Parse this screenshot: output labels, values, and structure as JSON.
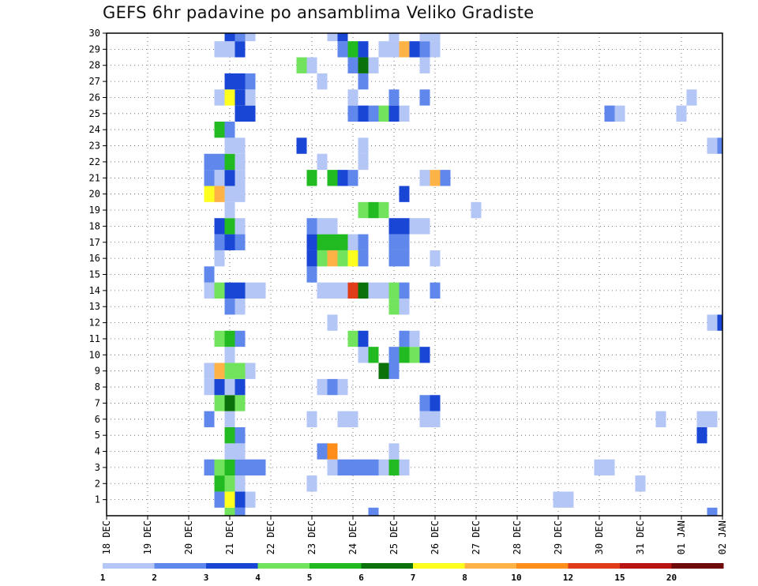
{
  "chart_data": {
    "type": "heatmap",
    "title": "GEFS 6hr padavine po ansamblima Veliko Gradiste",
    "xlabel": "",
    "ylabel": "",
    "x_tick_labels": [
      "18 DEC",
      "19 DEC",
      "20 DEC",
      "21 DEC",
      "22 DEC",
      "23 DEC",
      "24 DEC",
      "25 DEC",
      "26 DEC",
      "27 DEC",
      "28 DEC",
      "29 DEC",
      "30 DEC",
      "31 DEC",
      "01 JAN",
      "02 JAN"
    ],
    "y_tick_labels": [
      "1",
      "2",
      "3",
      "4",
      "5",
      "6",
      "7",
      "8",
      "9",
      "10",
      "11",
      "12",
      "13",
      "14",
      "15",
      "16",
      "17",
      "18",
      "19",
      "20",
      "21",
      "22",
      "23",
      "24",
      "25",
      "26",
      "27",
      "28",
      "29",
      "30"
    ],
    "x_unit": "6-hour step (0 = 18 DEC 00Z)",
    "ylim": [
      0,
      30
    ],
    "xlim": [
      0,
      60
    ],
    "grid": true,
    "legend_position": "bottom",
    "legend_labels": [
      "1",
      "2",
      "3",
      "4",
      "5",
      "6",
      "7",
      "8",
      "10",
      "12",
      "15",
      "20"
    ],
    "legend_colors": [
      "#b3c6f5",
      "#5f87ec",
      "#1a46d6",
      "#72e35c",
      "#21bb21",
      "#0b720b",
      "#ffff1f",
      "#ffb347",
      "#ff8d1a",
      "#e03c19",
      "#b81414",
      "#6e0a0a"
    ],
    "color_levels": [
      "#b3c6f5",
      "#5f87ec",
      "#1a46d6",
      "#72e35c",
      "#21bb21",
      "#0b720b",
      "#ffff1f",
      "#ffb347",
      "#ff8d1a",
      "#e03c19",
      "#b81414",
      "#6e0a0a"
    ],
    "cells": [
      [
        12,
        0,
        4
      ],
      [
        13,
        0,
        2
      ],
      [
        26,
        0,
        2
      ],
      [
        59,
        0,
        2
      ],
      [
        11,
        1,
        2
      ],
      [
        12,
        1,
        7
      ],
      [
        13,
        1,
        3
      ],
      [
        14,
        1,
        1
      ],
      [
        44,
        1,
        1
      ],
      [
        45,
        1,
        1
      ],
      [
        11,
        2,
        5
      ],
      [
        12,
        2,
        4
      ],
      [
        13,
        2,
        1
      ],
      [
        20,
        2,
        1
      ],
      [
        52,
        2,
        1
      ],
      [
        10,
        3,
        2
      ],
      [
        11,
        3,
        4
      ],
      [
        12,
        3,
        5
      ],
      [
        13,
        3,
        2
      ],
      [
        14,
        3,
        2
      ],
      [
        15,
        3,
        2
      ],
      [
        22,
        3,
        1
      ],
      [
        23,
        3,
        2
      ],
      [
        24,
        3,
        2
      ],
      [
        25,
        3,
        2
      ],
      [
        26,
        3,
        2
      ],
      [
        27,
        3,
        1
      ],
      [
        28,
        3,
        5
      ],
      [
        29,
        3,
        1
      ],
      [
        48,
        3,
        1
      ],
      [
        49,
        3,
        1
      ],
      [
        12,
        4,
        1
      ],
      [
        13,
        4,
        1
      ],
      [
        21,
        4,
        2
      ],
      [
        22,
        4,
        9
      ],
      [
        28,
        4,
        1
      ],
      [
        12,
        5,
        5
      ],
      [
        13,
        5,
        2
      ],
      [
        58,
        5,
        3
      ],
      [
        10,
        6,
        2
      ],
      [
        12,
        6,
        1
      ],
      [
        20,
        6,
        1
      ],
      [
        23,
        6,
        1
      ],
      [
        24,
        6,
        1
      ],
      [
        31,
        6,
        1
      ],
      [
        32,
        6,
        1
      ],
      [
        54,
        6,
        1
      ],
      [
        58,
        6,
        1
      ],
      [
        59,
        6,
        1
      ],
      [
        11,
        7,
        4
      ],
      [
        12,
        7,
        6
      ],
      [
        13,
        7,
        4
      ],
      [
        31,
        7,
        2
      ],
      [
        32,
        7,
        3
      ],
      [
        10,
        8,
        1
      ],
      [
        11,
        8,
        3
      ],
      [
        12,
        8,
        1
      ],
      [
        13,
        8,
        3
      ],
      [
        21,
        8,
        1
      ],
      [
        22,
        8,
        2
      ],
      [
        23,
        8,
        1
      ],
      [
        10,
        9,
        1
      ],
      [
        11,
        9,
        8
      ],
      [
        12,
        9,
        4
      ],
      [
        13,
        9,
        4
      ],
      [
        14,
        9,
        1
      ],
      [
        27,
        9,
        6
      ],
      [
        28,
        9,
        2
      ],
      [
        12,
        10,
        1
      ],
      [
        25,
        10,
        1
      ],
      [
        26,
        10,
        5
      ],
      [
        28,
        10,
        2
      ],
      [
        29,
        10,
        5
      ],
      [
        30,
        10,
        4
      ],
      [
        31,
        10,
        3
      ],
      [
        11,
        11,
        4
      ],
      [
        12,
        11,
        5
      ],
      [
        13,
        11,
        2
      ],
      [
        24,
        11,
        4
      ],
      [
        25,
        11,
        3
      ],
      [
        29,
        11,
        2
      ],
      [
        30,
        11,
        1
      ],
      [
        22,
        12,
        1
      ],
      [
        59,
        12,
        1
      ],
      [
        60,
        12,
        3
      ],
      [
        12,
        13,
        2
      ],
      [
        13,
        13,
        1
      ],
      [
        28,
        13,
        4
      ],
      [
        29,
        13,
        1
      ],
      [
        10,
        14,
        1
      ],
      [
        11,
        14,
        4
      ],
      [
        12,
        14,
        3
      ],
      [
        13,
        14,
        3
      ],
      [
        14,
        14,
        1
      ],
      [
        15,
        14,
        1
      ],
      [
        21,
        14,
        1
      ],
      [
        22,
        14,
        1
      ],
      [
        23,
        14,
        1
      ],
      [
        24,
        14,
        10
      ],
      [
        25,
        14,
        6
      ],
      [
        26,
        14,
        1
      ],
      [
        27,
        14,
        1
      ],
      [
        28,
        14,
        4
      ],
      [
        29,
        14,
        2
      ],
      [
        32,
        14,
        2
      ],
      [
        10,
        15,
        2
      ],
      [
        20,
        15,
        2
      ],
      [
        11,
        16,
        1
      ],
      [
        20,
        16,
        3
      ],
      [
        21,
        16,
        4
      ],
      [
        22,
        16,
        8
      ],
      [
        23,
        16,
        4
      ],
      [
        24,
        16,
        7
      ],
      [
        25,
        16,
        2
      ],
      [
        28,
        16,
        2
      ],
      [
        29,
        16,
        2
      ],
      [
        32,
        16,
        1
      ],
      [
        11,
        17,
        2
      ],
      [
        12,
        17,
        3
      ],
      [
        13,
        17,
        2
      ],
      [
        20,
        17,
        3
      ],
      [
        21,
        17,
        5
      ],
      [
        22,
        17,
        5
      ],
      [
        23,
        17,
        5
      ],
      [
        24,
        17,
        1
      ],
      [
        25,
        17,
        2
      ],
      [
        28,
        17,
        2
      ],
      [
        29,
        17,
        2
      ],
      [
        11,
        18,
        3
      ],
      [
        12,
        18,
        5
      ],
      [
        13,
        18,
        1
      ],
      [
        20,
        18,
        2
      ],
      [
        21,
        18,
        1
      ],
      [
        22,
        18,
        1
      ],
      [
        28,
        18,
        3
      ],
      [
        29,
        18,
        3
      ],
      [
        30,
        18,
        1
      ],
      [
        31,
        18,
        1
      ],
      [
        12,
        19,
        1
      ],
      [
        25,
        19,
        4
      ],
      [
        26,
        19,
        5
      ],
      [
        27,
        19,
        4
      ],
      [
        36,
        19,
        1
      ],
      [
        10,
        20,
        7
      ],
      [
        11,
        20,
        8
      ],
      [
        12,
        20,
        1
      ],
      [
        13,
        20,
        1
      ],
      [
        29,
        20,
        3
      ],
      [
        10,
        21,
        2
      ],
      [
        11,
        21,
        1
      ],
      [
        12,
        21,
        3
      ],
      [
        13,
        21,
        1
      ],
      [
        20,
        21,
        5
      ],
      [
        22,
        21,
        5
      ],
      [
        23,
        21,
        3
      ],
      [
        24,
        21,
        2
      ],
      [
        31,
        21,
        1
      ],
      [
        32,
        21,
        8
      ],
      [
        33,
        21,
        2
      ],
      [
        10,
        22,
        2
      ],
      [
        11,
        22,
        2
      ],
      [
        12,
        22,
        5
      ],
      [
        13,
        22,
        1
      ],
      [
        21,
        22,
        1
      ],
      [
        25,
        22,
        1
      ],
      [
        12,
        23,
        1
      ],
      [
        13,
        23,
        1
      ],
      [
        19,
        23,
        3
      ],
      [
        25,
        23,
        1
      ],
      [
        59,
        23,
        1
      ],
      [
        60,
        23,
        2
      ],
      [
        11,
        24,
        5
      ],
      [
        12,
        24,
        2
      ],
      [
        13,
        25,
        3
      ],
      [
        14,
        25,
        3
      ],
      [
        24,
        25,
        2
      ],
      [
        25,
        25,
        3
      ],
      [
        26,
        25,
        2
      ],
      [
        27,
        25,
        4
      ],
      [
        28,
        25,
        3
      ],
      [
        29,
        25,
        1
      ],
      [
        49,
        25,
        2
      ],
      [
        50,
        25,
        1
      ],
      [
        56,
        25,
        1
      ],
      [
        11,
        26,
        1
      ],
      [
        12,
        26,
        7
      ],
      [
        13,
        26,
        3
      ],
      [
        14,
        26,
        1
      ],
      [
        24,
        26,
        1
      ],
      [
        28,
        26,
        2
      ],
      [
        31,
        26,
        2
      ],
      [
        57,
        26,
        1
      ],
      [
        12,
        27,
        3
      ],
      [
        13,
        27,
        3
      ],
      [
        14,
        27,
        2
      ],
      [
        21,
        27,
        1
      ],
      [
        25,
        27,
        2
      ],
      [
        19,
        28,
        4
      ],
      [
        20,
        28,
        1
      ],
      [
        24,
        28,
        2
      ],
      [
        25,
        28,
        6
      ],
      [
        26,
        28,
        1
      ],
      [
        31,
        28,
        1
      ],
      [
        11,
        29,
        1
      ],
      [
        12,
        29,
        1
      ],
      [
        13,
        29,
        3
      ],
      [
        23,
        29,
        2
      ],
      [
        24,
        29,
        5
      ],
      [
        25,
        29,
        3
      ],
      [
        27,
        29,
        1
      ],
      [
        28,
        29,
        1
      ],
      [
        29,
        29,
        8
      ],
      [
        30,
        29,
        3
      ],
      [
        31,
        29,
        2
      ],
      [
        32,
        29,
        1
      ],
      [
        12,
        30,
        3
      ],
      [
        13,
        30,
        2
      ],
      [
        14,
        30,
        1
      ],
      [
        22,
        30,
        1
      ],
      [
        23,
        30,
        3
      ],
      [
        28,
        30,
        1
      ],
      [
        31,
        30,
        1
      ],
      [
        32,
        30,
        1
      ]
    ]
  }
}
